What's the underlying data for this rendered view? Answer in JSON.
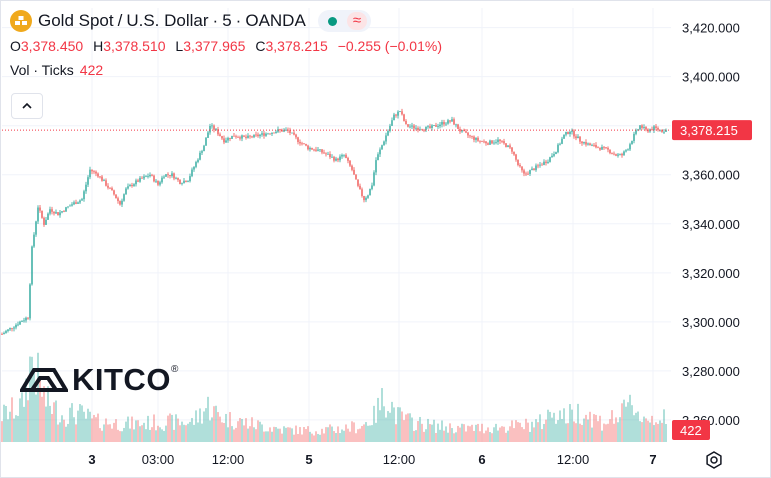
{
  "header": {
    "symbol_title": "Gold Spot",
    "sep1": "/",
    "quote_currency": "U.S. Dollar",
    "dot1": "·",
    "interval": "5",
    "dot2": "·",
    "exchange": "OANDA",
    "wave_glyph": "≈",
    "live_color": "#089981"
  },
  "ohlc": {
    "open_label": "O",
    "open": "3,378.450",
    "high_label": "H",
    "high": "3,378.510",
    "low_label": "L",
    "low": "3,377.965",
    "close_label": "C",
    "close": "3,378.215",
    "change": "−0.255 (−0.01%)"
  },
  "volume": {
    "label": "Vol · Ticks",
    "value": "422"
  },
  "watermark": {
    "brand": "KITCO",
    "reg": "®"
  },
  "icons": {
    "collapse": "chevron-up-icon",
    "settings": "settings-gear-icon",
    "logo": "gold-bars-icon"
  },
  "colors": {
    "up": "#26a69a",
    "down": "#ef5350",
    "last_price": "#f23645",
    "grid": "#f0f3fa"
  },
  "chart_data": {
    "type": "candlestick",
    "title": "Gold Spot / U.S. Dollar · 5 · OANDA",
    "y_range": [
      3251,
      3428
    ],
    "y_ticks": [
      3420,
      3400,
      3380,
      3360,
      3340,
      3320,
      3300,
      3280,
      3260
    ],
    "y_tick_labels": [
      "3,420.000",
      "3,400.000",
      "3,380.000",
      "3,360.000",
      "3,340.000",
      "3,320.000",
      "3,300.000",
      "3,280.000",
      "3,260.000"
    ],
    "x_tick_labels": [
      "3",
      "03:00",
      "12:00",
      "5",
      "12:00",
      "6",
      "12:00",
      "7"
    ],
    "x_tick_bold": [
      true,
      false,
      false,
      true,
      false,
      true,
      false,
      true
    ],
    "last_price": 3378.215,
    "last_price_label": "3,378.215",
    "last_volume": 422,
    "last_volume_label": "422",
    "price_path": [
      [
        0,
        3295
      ],
      [
        18,
        3300
      ],
      [
        26,
        3302
      ],
      [
        30,
        3330
      ],
      [
        36,
        3347
      ],
      [
        42,
        3340
      ],
      [
        48,
        3346
      ],
      [
        56,
        3344
      ],
      [
        70,
        3348
      ],
      [
        80,
        3350
      ],
      [
        88,
        3362
      ],
      [
        96,
        3360
      ],
      [
        104,
        3356
      ],
      [
        112,
        3352
      ],
      [
        118,
        3348
      ],
      [
        124,
        3354
      ],
      [
        130,
        3356
      ],
      [
        138,
        3358
      ],
      [
        148,
        3360
      ],
      [
        156,
        3356
      ],
      [
        162,
        3360
      ],
      [
        170,
        3360
      ],
      [
        178,
        3357
      ],
      [
        186,
        3358
      ],
      [
        194,
        3365
      ],
      [
        202,
        3372
      ],
      [
        208,
        3380
      ],
      [
        214,
        3378
      ],
      [
        222,
        3374
      ],
      [
        232,
        3376
      ],
      [
        244,
        3375
      ],
      [
        256,
        3376
      ],
      [
        266,
        3377
      ],
      [
        276,
        3378
      ],
      [
        286,
        3378
      ],
      [
        296,
        3374
      ],
      [
        306,
        3371
      ],
      [
        316,
        3370
      ],
      [
        326,
        3368
      ],
      [
        334,
        3366
      ],
      [
        342,
        3368
      ],
      [
        350,
        3362
      ],
      [
        356,
        3355
      ],
      [
        362,
        3350
      ],
      [
        366,
        3352
      ],
      [
        370,
        3356
      ],
      [
        374,
        3366
      ],
      [
        380,
        3372
      ],
      [
        386,
        3378
      ],
      [
        392,
        3384
      ],
      [
        398,
        3386
      ],
      [
        404,
        3380
      ],
      [
        416,
        3379
      ],
      [
        428,
        3379
      ],
      [
        440,
        3381
      ],
      [
        450,
        3382
      ],
      [
        458,
        3378
      ],
      [
        466,
        3376
      ],
      [
        476,
        3374
      ],
      [
        486,
        3373
      ],
      [
        496,
        3374
      ],
      [
        504,
        3372
      ],
      [
        510,
        3370
      ],
      [
        516,
        3364
      ],
      [
        522,
        3360
      ],
      [
        530,
        3362
      ],
      [
        538,
        3364
      ],
      [
        546,
        3366
      ],
      [
        554,
        3370
      ],
      [
        562,
        3376
      ],
      [
        568,
        3378
      ],
      [
        578,
        3374
      ],
      [
        588,
        3372
      ],
      [
        598,
        3371
      ],
      [
        606,
        3370
      ],
      [
        614,
        3368
      ],
      [
        620,
        3368
      ],
      [
        626,
        3371
      ],
      [
        632,
        3376
      ],
      [
        638,
        3380
      ],
      [
        644,
        3378
      ],
      [
        652,
        3379
      ],
      [
        660,
        3378
      ],
      [
        666,
        3378.215
      ]
    ],
    "volume_path": [
      [
        0,
        30
      ],
      [
        20,
        40
      ],
      [
        30,
        95
      ],
      [
        36,
        70
      ],
      [
        44,
        45
      ],
      [
        60,
        30
      ],
      [
        76,
        32
      ],
      [
        96,
        22
      ],
      [
        130,
        20
      ],
      [
        160,
        22
      ],
      [
        190,
        22
      ],
      [
        206,
        40
      ],
      [
        214,
        32
      ],
      [
        224,
        26
      ],
      [
        250,
        20
      ],
      [
        280,
        14
      ],
      [
        300,
        13
      ],
      [
        320,
        13
      ],
      [
        340,
        15
      ],
      [
        360,
        18
      ],
      [
        372,
        28
      ],
      [
        380,
        45
      ],
      [
        386,
        50
      ],
      [
        394,
        30
      ],
      [
        410,
        22
      ],
      [
        430,
        18
      ],
      [
        460,
        15
      ],
      [
        490,
        16
      ],
      [
        520,
        18
      ],
      [
        540,
        22
      ],
      [
        552,
        36
      ],
      [
        562,
        28
      ],
      [
        580,
        34
      ],
      [
        600,
        22
      ],
      [
        620,
        30
      ],
      [
        630,
        44
      ],
      [
        640,
        26
      ],
      [
        660,
        28
      ],
      [
        666,
        20
      ]
    ]
  }
}
